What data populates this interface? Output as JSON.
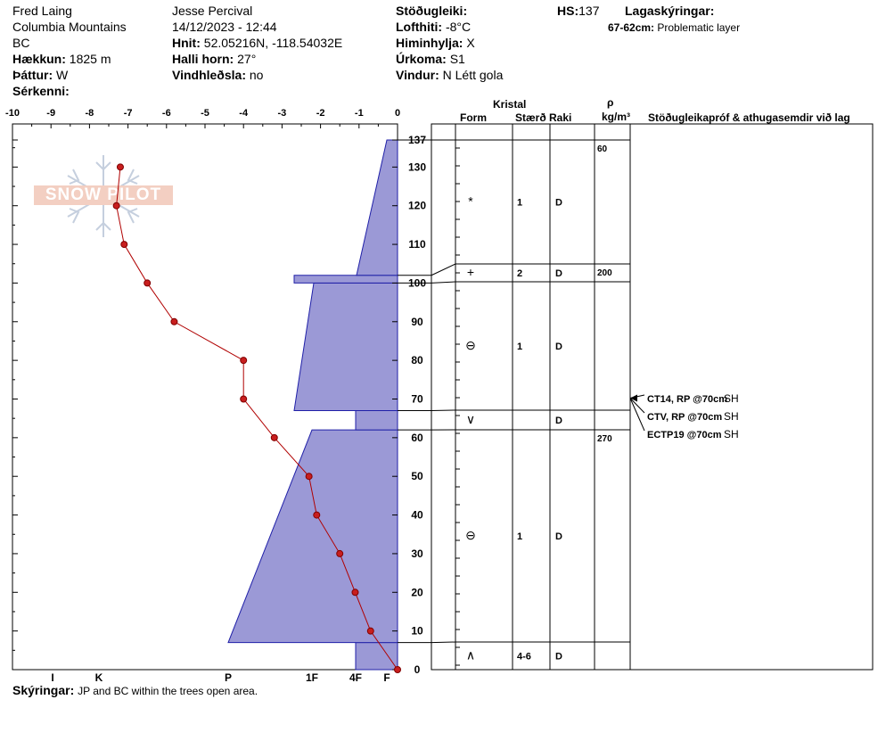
{
  "header": {
    "observer": "Fred Laing",
    "range": "Columbia Mountains",
    "region": "BC",
    "elevation_label": "Hækkun:",
    "elevation_value": "1825 m",
    "aspect_label": "Þáttur:",
    "aspect_value": "W",
    "features_label": "Sérkenni:",
    "submitter": "Jesse Percival",
    "datetime": "14/12/2023 - 12:44",
    "coords_label": "Hnit:",
    "coords_value": "52.05216N, -118.54032E",
    "slope_label": "Halli horn:",
    "slope_value": "27°",
    "wind_loading_label": "Vindhleðsla:",
    "wind_loading_value": "no",
    "stability_label": "Stöðugleiki:",
    "air_temp_label": "Lofthiti:",
    "air_temp_value": "-8°C",
    "sky_label": "Himinhylja:",
    "sky_value": "X",
    "precip_label": "Úrkoma:",
    "precip_value": "S1",
    "wind_label": "Vindur:",
    "wind_value": "N Létt gola",
    "hs_label": "HS:",
    "hs_value": "137",
    "legend_title": "Lagaskýringar:",
    "legend_range": "67-62cm:",
    "legend_text": "Problematic layer"
  },
  "watermark": "SNOW PILOT",
  "footer": {
    "label": "Skýringar:",
    "text": "JP and BC within the trees open area."
  },
  "table_headers": {
    "crystal": "Kristal",
    "form": "Form",
    "size": "Stærð",
    "moisture": "Raki",
    "rho": "ρ",
    "rho_unit": "kg/m³",
    "tests": "Stöðugleikapróf & athugasemdir við lag"
  },
  "chart_data": {
    "type": "line",
    "temp_axis": {
      "ticks": [
        -10,
        -9,
        -8,
        -7,
        -6,
        -5,
        -4,
        -3,
        -2,
        -1,
        0
      ],
      "xlim": [
        -10,
        0
      ]
    },
    "height_axis": {
      "ticks": [
        0,
        10,
        20,
        30,
        40,
        50,
        60,
        70,
        80,
        90,
        100,
        110,
        120,
        130,
        137
      ],
      "ylim": [
        0,
        137
      ]
    },
    "hardness_axis_labels": [
      "I",
      "K",
      "P",
      "1F",
      "4F",
      "F"
    ],
    "temperature_profile": {
      "depth_cm": [
        130,
        120,
        110,
        100,
        90,
        80,
        70,
        60,
        50,
        40,
        30,
        20,
        10,
        0
      ],
      "temp_c": [
        -7.2,
        -7.3,
        -7.1,
        -6.5,
        -5.8,
        -4.0,
        -4.0,
        -3.2,
        -2.3,
        -2.1,
        -1.5,
        -1.1,
        -0.7,
        0.0
      ]
    },
    "hardness_profile": [
      {
        "bottom": 0,
        "top": 7,
        "hardness": "4F"
      },
      {
        "bottom": 7,
        "top": 62,
        "hardness": "P→1F"
      },
      {
        "bottom": 62,
        "top": 67,
        "hardness": "4F"
      },
      {
        "bottom": 67,
        "top": 100,
        "hardness": "1F→4F"
      },
      {
        "bottom": 100,
        "top": 102,
        "hardness": "K-"
      },
      {
        "bottom": 102,
        "top": 137,
        "hardness": "4F→F"
      }
    ],
    "layers": [
      {
        "top": 137,
        "bottom": 102,
        "form": "*",
        "size": "1",
        "moisture": "D",
        "density": "60"
      },
      {
        "top": 102,
        "bottom": 100,
        "form": "+",
        "size": "2",
        "moisture": "D",
        "density": "200"
      },
      {
        "top": 100,
        "bottom": 67,
        "form": "rounding",
        "size": "1",
        "moisture": "D",
        "density": ""
      },
      {
        "top": 67,
        "bottom": 62,
        "form": "∨",
        "size": "",
        "moisture": "D",
        "density": ""
      },
      {
        "top": 62,
        "bottom": 7,
        "form": "rounding",
        "size": "1",
        "moisture": "D",
        "density": "270"
      },
      {
        "top": 7,
        "bottom": 0,
        "form": "∧",
        "size": "4-6",
        "moisture": "D",
        "density": ""
      }
    ],
    "tests": [
      {
        "result": "CT14, RP @70cm",
        "char": "SH"
      },
      {
        "result": "CTV, RP @70cm",
        "char": "SH"
      },
      {
        "result": "ECTP19 @70cm",
        "char": "SH"
      }
    ]
  }
}
